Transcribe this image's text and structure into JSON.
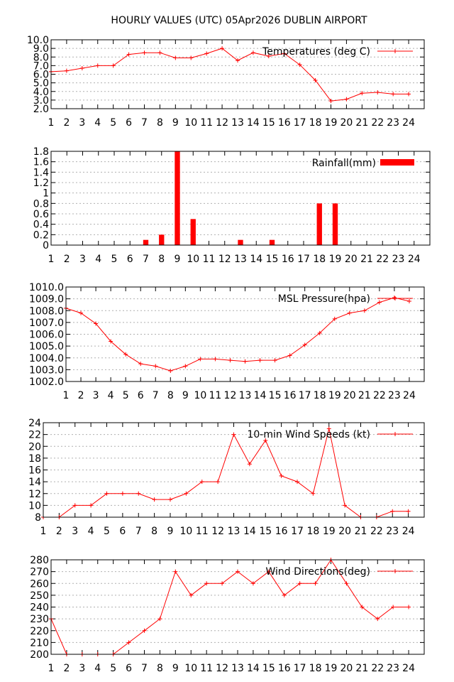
{
  "title": "HOURLY VALUES (UTC) 05Apr2026  DUBLIN AIRPORT",
  "colors": {
    "series": "#ff0000",
    "grid": "#b0b0b0",
    "frame": "#000000"
  },
  "chart_data": [
    {
      "type": "line",
      "legend": "Temperatures (deg C)",
      "legend_position": "top-right",
      "grid": true,
      "x": [
        1,
        2,
        3,
        4,
        5,
        6,
        7,
        8,
        9,
        10,
        11,
        12,
        13,
        14,
        15,
        16,
        17,
        18,
        19,
        20,
        21,
        22,
        23,
        24
      ],
      "xlim": [
        1,
        25
      ],
      "ylim": [
        2.0,
        10.0
      ],
      "yticks": [
        "2.0",
        "3.0",
        "4.0",
        "5.0",
        "6.0",
        "7.0",
        "8.0",
        "9.0",
        "10.0"
      ],
      "values": [
        6.3,
        6.4,
        6.7,
        7.0,
        7.0,
        8.3,
        8.5,
        8.5,
        7.9,
        7.9,
        8.4,
        9.0,
        7.6,
        8.5,
        8.1,
        8.4,
        7.1,
        5.3,
        2.9,
        3.1,
        3.8,
        3.9,
        3.7,
        3.7
      ]
    },
    {
      "type": "bar",
      "legend": "Rainfall(mm)",
      "legend_position": "top-right",
      "grid": true,
      "x": [
        1,
        2,
        3,
        4,
        5,
        6,
        7,
        8,
        9,
        10,
        11,
        12,
        13,
        14,
        15,
        16,
        17,
        18,
        19,
        20,
        21,
        22,
        23,
        24
      ],
      "xlim": [
        1,
        25
      ],
      "ylim": [
        0,
        1.8
      ],
      "yticks": [
        "0",
        "0.2",
        "0.4",
        "0.6",
        "0.8",
        "1",
        "1.2",
        "1.4",
        "1.6",
        "1.8"
      ],
      "values": [
        0,
        0,
        0,
        0,
        0,
        0,
        0.1,
        0.2,
        1.8,
        0.5,
        0,
        0,
        0.1,
        0,
        0.1,
        0,
        0,
        0.8,
        0.8,
        0,
        0,
        0,
        0,
        0
      ]
    },
    {
      "type": "line",
      "legend": "MSL Pressure(hpa)",
      "legend_position": "top-right",
      "grid": true,
      "x": [
        1,
        2,
        3,
        4,
        5,
        6,
        7,
        8,
        9,
        10,
        11,
        12,
        13,
        14,
        15,
        16,
        17,
        18,
        19,
        20,
        21,
        22,
        23,
        24
      ],
      "xlim": [
        1,
        25
      ],
      "ylim": [
        1002.0,
        1010.0
      ],
      "yticks": [
        "1002.0",
        "1003.0",
        "1004.0",
        "1005.0",
        "1006.0",
        "1007.0",
        "1008.0",
        "1009.0",
        "1010.0"
      ],
      "values": [
        1008.2,
        1007.8,
        1006.9,
        1005.4,
        1004.3,
        1003.5,
        1003.3,
        1002.9,
        1003.3,
        1003.9,
        1003.9,
        1003.8,
        1003.7,
        1003.8,
        1003.8,
        1004.2,
        1005.1,
        1006.1,
        1007.3,
        1007.8,
        1008.0,
        1008.7,
        1009.1,
        1008.8
      ]
    },
    {
      "type": "line",
      "legend": "10-min Wind Speeds (kt)",
      "legend_position": "top-right",
      "grid": true,
      "x": [
        1,
        2,
        3,
        4,
        5,
        6,
        7,
        8,
        9,
        10,
        11,
        12,
        13,
        14,
        15,
        16,
        17,
        18,
        19,
        20,
        21,
        22,
        23,
        24
      ],
      "xlim": [
        1,
        25
      ],
      "ylim": [
        8,
        24
      ],
      "yticks": [
        "8",
        "10",
        "12",
        "14",
        "16",
        "18",
        "20",
        "22",
        "24"
      ],
      "values": [
        8,
        8,
        10,
        10,
        12,
        12,
        12,
        11,
        11,
        12,
        14,
        14,
        22,
        17,
        21,
        15,
        14,
        12,
        23,
        10,
        8,
        8,
        9,
        9
      ]
    },
    {
      "type": "line",
      "legend": "Wind Directions(deg)",
      "legend_position": "top-right",
      "grid": true,
      "x": [
        1,
        2,
        3,
        4,
        5,
        6,
        7,
        8,
        9,
        10,
        11,
        12,
        13,
        14,
        15,
        16,
        17,
        18,
        19,
        20,
        21,
        22,
        23,
        24
      ],
      "xlim": [
        1,
        25
      ],
      "ylim": [
        200,
        280
      ],
      "yticks": [
        "200",
        "210",
        "220",
        "230",
        "240",
        "250",
        "260",
        "270",
        "280"
      ],
      "values": [
        230,
        200,
        200,
        200,
        200,
        210,
        220,
        230,
        270,
        250,
        260,
        260,
        270,
        260,
        270,
        250,
        260,
        260,
        280,
        260,
        240,
        230,
        240,
        240
      ]
    }
  ]
}
